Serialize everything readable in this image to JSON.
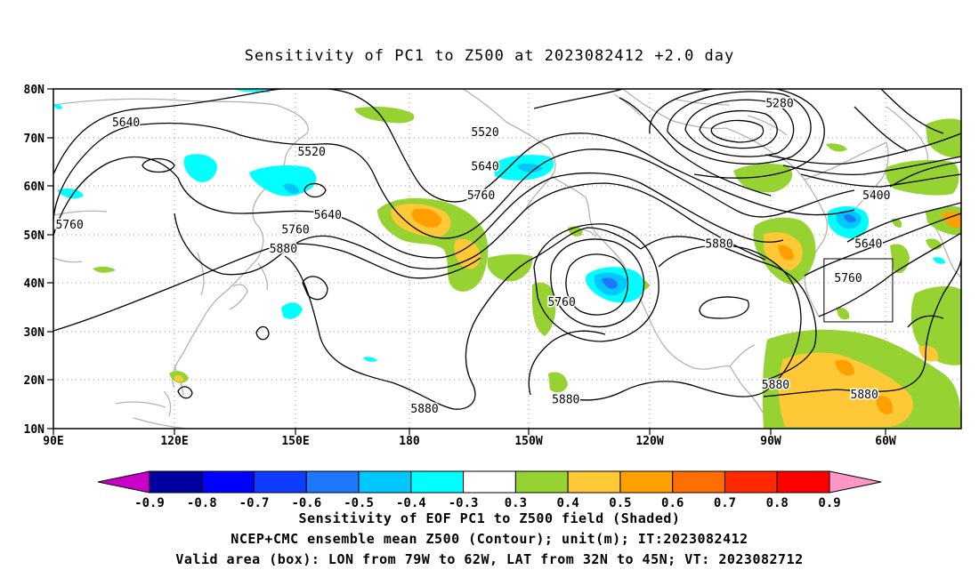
{
  "title": "Sensitivity of PC1 to Z500 at 2023082412 +2.0 day",
  "map": {
    "lat_ticks": [
      "80N",
      "70N",
      "60N",
      "50N",
      "40N",
      "30N",
      "20N",
      "10N"
    ],
    "lon_ticks": [
      "90E",
      "120E",
      "150E",
      "180",
      "150W",
      "120W",
      "90W",
      "60W"
    ],
    "lon_range": [
      90,
      315
    ],
    "lat_range": [
      10,
      80
    ],
    "grid": "dotted",
    "valid_box": {
      "lon": [
        -79,
        -62
      ],
      "lat": [
        32,
        45
      ]
    },
    "contour_color": "#000000",
    "coast_color": "#b3b3b3",
    "contour_labels": [
      {
        "text": "5640",
        "lon": 108,
        "lat": 73
      },
      {
        "text": "5520",
        "lon": 154,
        "lat": 67
      },
      {
        "text": "5640",
        "lon": 158,
        "lat": 54
      },
      {
        "text": "5760",
        "lon": 94,
        "lat": 52
      },
      {
        "text": "5760",
        "lon": 150,
        "lat": 51
      },
      {
        "text": "5880",
        "lon": 147,
        "lat": 47
      },
      {
        "text": "5520",
        "lon": -163,
        "lat": 71
      },
      {
        "text": "5640",
        "lon": -163,
        "lat": 64
      },
      {
        "text": "5760",
        "lon": -164,
        "lat": 58
      },
      {
        "text": "5280",
        "lon": -90,
        "lat": 77
      },
      {
        "text": "5400",
        "lon": -66,
        "lat": 58
      },
      {
        "text": "5640",
        "lon": -68,
        "lat": 48
      },
      {
        "text": "5760",
        "lon": -73,
        "lat": 41
      },
      {
        "text": "5880",
        "lon": -105,
        "lat": 48
      },
      {
        "text": "5760",
        "lon": -144,
        "lat": 36
      },
      {
        "text": "5880",
        "lon": -178,
        "lat": 14
      },
      {
        "text": "5880",
        "lon": -143,
        "lat": 16
      },
      {
        "text": "5880",
        "lon": -91,
        "lat": 19
      },
      {
        "text": "5880",
        "lon": -69,
        "lat": 17
      }
    ]
  },
  "colorbar": {
    "labels": [
      "-0.9",
      "-0.8",
      "-0.7",
      "-0.6",
      "-0.5",
      "-0.4",
      "-0.3",
      "0.3",
      "0.4",
      "0.5",
      "0.6",
      "0.7",
      "0.8",
      "0.9"
    ],
    "colors": [
      "#0000a0",
      "#0000ff",
      "#0f3cff",
      "#1e78ff",
      "#00c8ff",
      "#00ffff",
      "#ffffff",
      "#96d232",
      "#ffc837",
      "#ffa000",
      "#ff6e00",
      "#ff2800",
      "#ff0000"
    ],
    "left_tip": "#c800c8",
    "right_tip": "#ff96c8"
  },
  "footer": [
    "Sensitivity of EOF PC1 to Z500 field (Shaded)",
    "NCEP+CMC ensemble mean Z500 (Contour); unit(m); IT:2023082412",
    "Valid area (box): LON from 79W to 62W, LAT from 32N to 45N; VT: 2023082712"
  ]
}
